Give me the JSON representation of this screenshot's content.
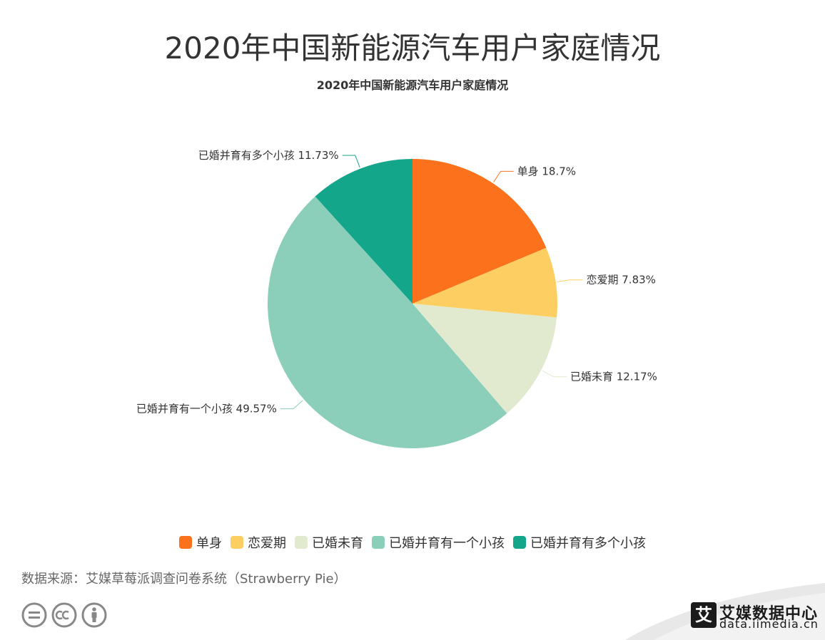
{
  "page_title": "2020年中国新能源汽车用户家庭情况",
  "chart_data": {
    "type": "pie",
    "title": "2020年中国新能源汽车用户家庭情况",
    "categories": [
      "单身",
      "恋爱期",
      "已婚未育",
      "已婚并育有一个小孩",
      "已婚并育有多个小孩"
    ],
    "values": [
      18.7,
      7.83,
      12.17,
      49.57,
      11.73
    ],
    "value_labels": [
      "18.7%",
      "7.83%",
      "12.17%",
      "49.57%",
      "11.73%"
    ],
    "colors": [
      "#fc711c",
      "#fdcf62",
      "#e1eacf",
      "#8bcfba",
      "#14a68b"
    ],
    "legend_position": "bottom-center"
  },
  "source": "数据来源：艾媒草莓派调查问卷系统（Strawberry Pie）",
  "footer": {
    "brand_icon_char": "艾",
    "brand_name": "艾媒数据中心",
    "brand_url": "data.iimedia.cn",
    "cc_icons": [
      "equals-icon",
      "cc-icon",
      "person-icon"
    ]
  }
}
